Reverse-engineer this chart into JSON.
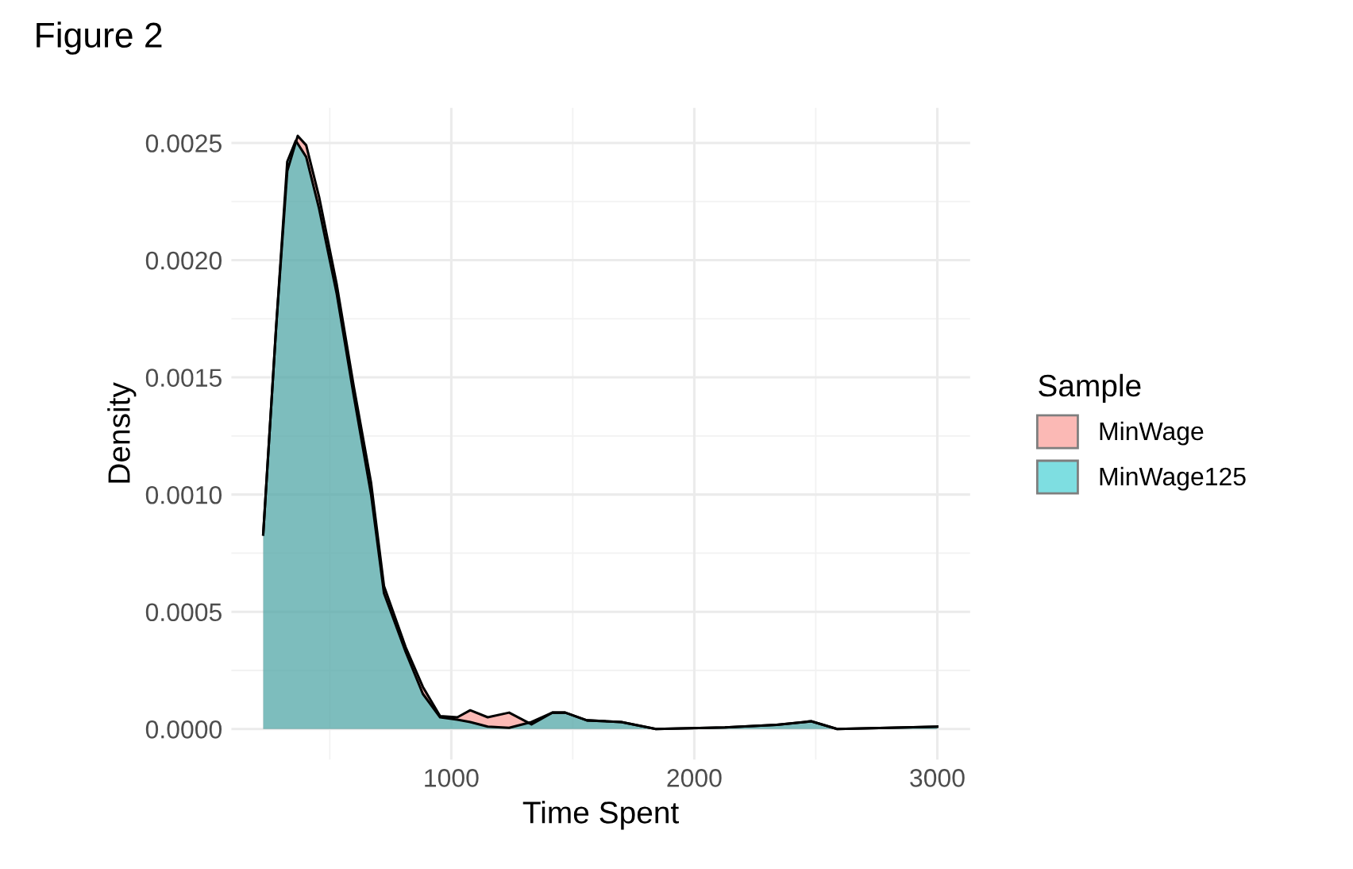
{
  "chart_data": {
    "type": "area",
    "title": "Figure 2",
    "xlabel": "Time Spent",
    "ylabel": "Density",
    "legend_title": "Sample",
    "series": [
      {
        "name": "MinWage",
        "color": "#f8766d",
        "x": [
          226,
          279,
          325,
          368,
          403,
          456,
          528,
          599,
          670,
          723,
          812,
          883,
          954,
          1025,
          1078,
          1150,
          1238,
          1330,
          1416,
          1469,
          1558,
          1700,
          1842,
          2126,
          2339,
          2481,
          2588,
          3000
        ],
        "values": [
          0.00083,
          0.00171,
          0.00238,
          0.00253,
          0.00249,
          0.00227,
          0.0019,
          0.00146,
          0.00105,
          0.00061,
          0.00035,
          0.00018,
          5.5e-05,
          5e-05,
          8e-05,
          5e-05,
          7e-05,
          2e-05,
          7e-05,
          7e-05,
          3.7e-05,
          3e-05,
          0,
          7e-06,
          1.8e-05,
          3.3e-05,
          0,
          1e-05
        ]
      },
      {
        "name": "MinWage125",
        "color": "#00bfc4",
        "x": [
          226,
          279,
          325,
          360,
          403,
          456,
          528,
          599,
          670,
          723,
          812,
          883,
          954,
          1025,
          1078,
          1150,
          1238,
          1330,
          1416,
          1469,
          1558,
          1700,
          1842,
          2126,
          2339,
          2481,
          2588,
          3000
        ],
        "values": [
          0.00083,
          0.00171,
          0.00242,
          0.00251,
          0.00244,
          0.00222,
          0.00186,
          0.00142,
          0.001,
          0.00058,
          0.00033,
          0.00015,
          5e-05,
          4e-05,
          3e-05,
          1e-05,
          5e-06,
          3e-05,
          7e-05,
          7e-05,
          3.7e-05,
          3e-05,
          0,
          7e-06,
          1.8e-05,
          3.3e-05,
          0,
          1e-05
        ]
      }
    ],
    "xlim": [
      95,
      3135
    ],
    "ylim": [
      -0.00013,
      0.00265
    ],
    "xticks": [
      1000,
      2000,
      3000
    ],
    "yticks": [
      {
        "value": 0,
        "label": "0.0000"
      },
      {
        "value": 0.0005,
        "label": "0.0005"
      },
      {
        "value": 0.001,
        "label": "0.0010"
      },
      {
        "value": 0.0015,
        "label": "0.0015"
      },
      {
        "value": 0.002,
        "label": "0.0020"
      },
      {
        "value": 0.0025,
        "label": "0.0025"
      }
    ],
    "grid": true,
    "legend": "right"
  }
}
